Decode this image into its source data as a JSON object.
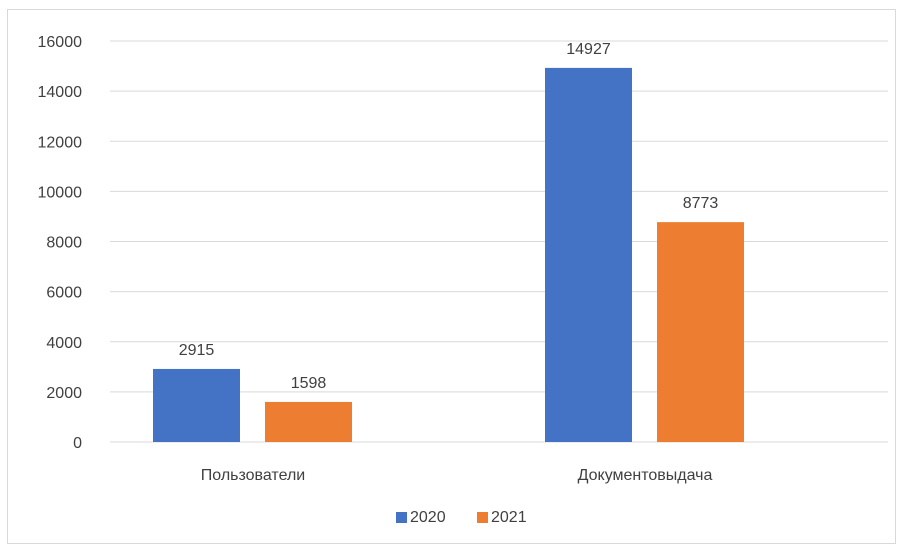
{
  "chart_data": {
    "type": "bar",
    "title": "",
    "xlabel": "",
    "ylabel": "",
    "categories": [
      "Пользователи",
      "Документовыдача"
    ],
    "series": [
      {
        "name": "2020",
        "values": [
          2915,
          14927
        ],
        "color": "#4472C4"
      },
      {
        "name": "2021",
        "values": [
          1598,
          8773
        ],
        "color": "#ED7D31"
      }
    ],
    "ylim": [
      0,
      16000
    ],
    "yticks": [
      0,
      2000,
      4000,
      6000,
      8000,
      10000,
      12000,
      14000,
      16000
    ],
    "grid": true,
    "data_labels": true,
    "legend_position": "bottom",
    "gridline_color": "#d9d9d9",
    "text_color": "#404040"
  }
}
